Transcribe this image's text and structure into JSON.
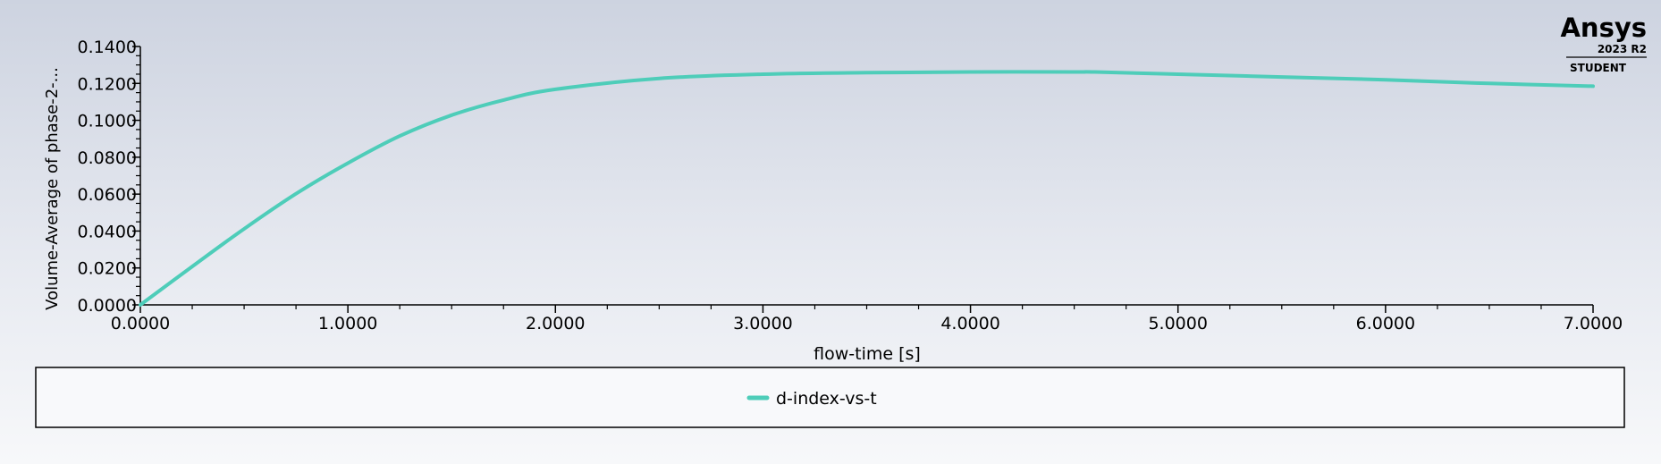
{
  "logo": {
    "brand": "Ansys",
    "version": "2023 R2",
    "edition": "STUDENT"
  },
  "colors": {
    "series": "#4ecdb9",
    "axis": "#000000"
  },
  "chart_data": {
    "type": "line",
    "xlabel": "flow-time [s]",
    "ylabel": "Volume-Average of phase-2-...",
    "xlim": [
      0,
      7
    ],
    "ylim": [
      0,
      0.14
    ],
    "x_ticks": [
      "0.0000",
      "1.0000",
      "2.0000",
      "3.0000",
      "4.0000",
      "5.0000",
      "6.0000",
      "7.0000"
    ],
    "y_ticks": [
      "0.0000",
      "0.0200",
      "0.0400",
      "0.0600",
      "0.0800",
      "0.1000",
      "0.1200",
      "0.1400"
    ],
    "grid": false,
    "legend": "bottom",
    "series": [
      {
        "name": "d-index-vs-t",
        "x": [
          0,
          0.25,
          0.5,
          0.75,
          1.0,
          1.25,
          1.5,
          1.75,
          2.0,
          2.5,
          3.0,
          3.5,
          4.0,
          4.5,
          4.6,
          5.0,
          5.5,
          6.0,
          6.5,
          7.0
        ],
        "y": [
          0,
          0.0208,
          0.0412,
          0.0602,
          0.0768,
          0.0915,
          0.1028,
          0.111,
          0.1168,
          0.1227,
          0.125,
          0.1258,
          0.1262,
          0.1262,
          0.1262,
          0.125,
          0.1235,
          0.122,
          0.12,
          0.1185
        ]
      }
    ]
  }
}
